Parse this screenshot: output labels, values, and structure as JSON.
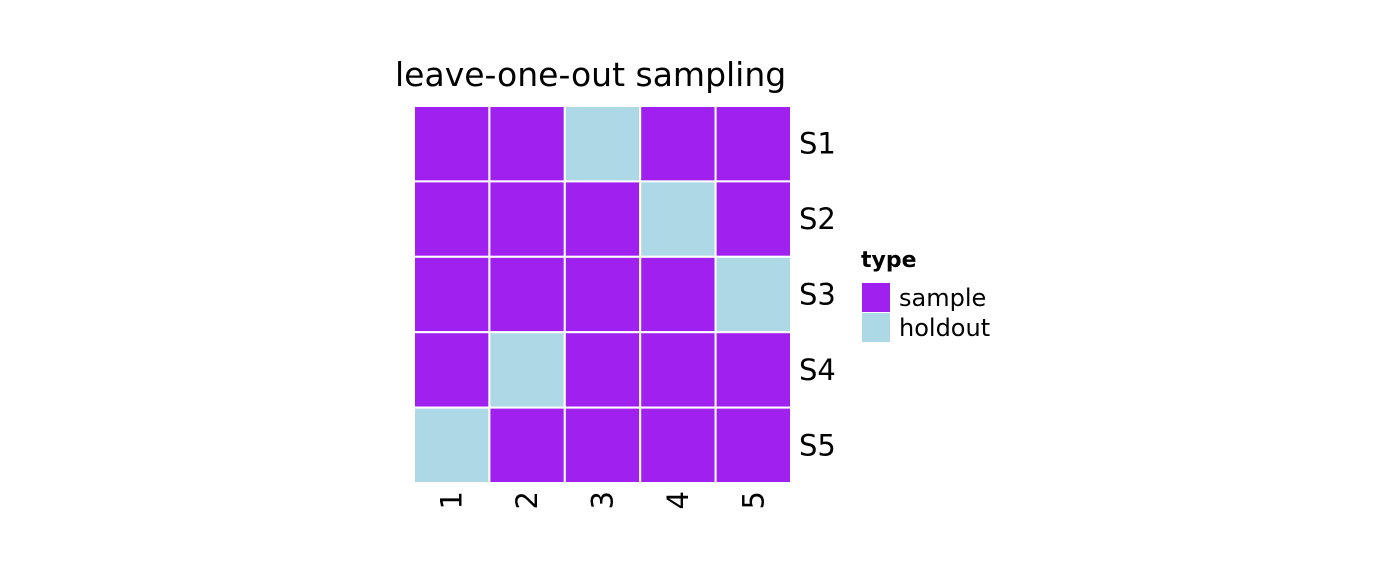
{
  "chart_data": {
    "type": "heatmap",
    "title": "leave-one-out sampling",
    "columns": [
      "1",
      "2",
      "3",
      "4",
      "5"
    ],
    "rows": [
      "S1",
      "S2",
      "S3",
      "S4",
      "S5"
    ],
    "cells": [
      [
        "sample",
        "sample",
        "holdout",
        "sample",
        "sample"
      ],
      [
        "sample",
        "sample",
        "sample",
        "holdout",
        "sample"
      ],
      [
        "sample",
        "sample",
        "sample",
        "sample",
        "holdout"
      ],
      [
        "sample",
        "holdout",
        "sample",
        "sample",
        "sample"
      ],
      [
        "holdout",
        "sample",
        "sample",
        "sample",
        "sample"
      ]
    ],
    "legend": {
      "title": "type",
      "position": "right",
      "entries": [
        {
          "label": "sample",
          "color": "#A020F0"
        },
        {
          "label": "holdout",
          "color": "#ADD8E6"
        }
      ]
    },
    "grid": false,
    "colors": {
      "sample": "#A020F0",
      "holdout": "#ADD8E6",
      "cell_border": "#ffffff"
    }
  }
}
